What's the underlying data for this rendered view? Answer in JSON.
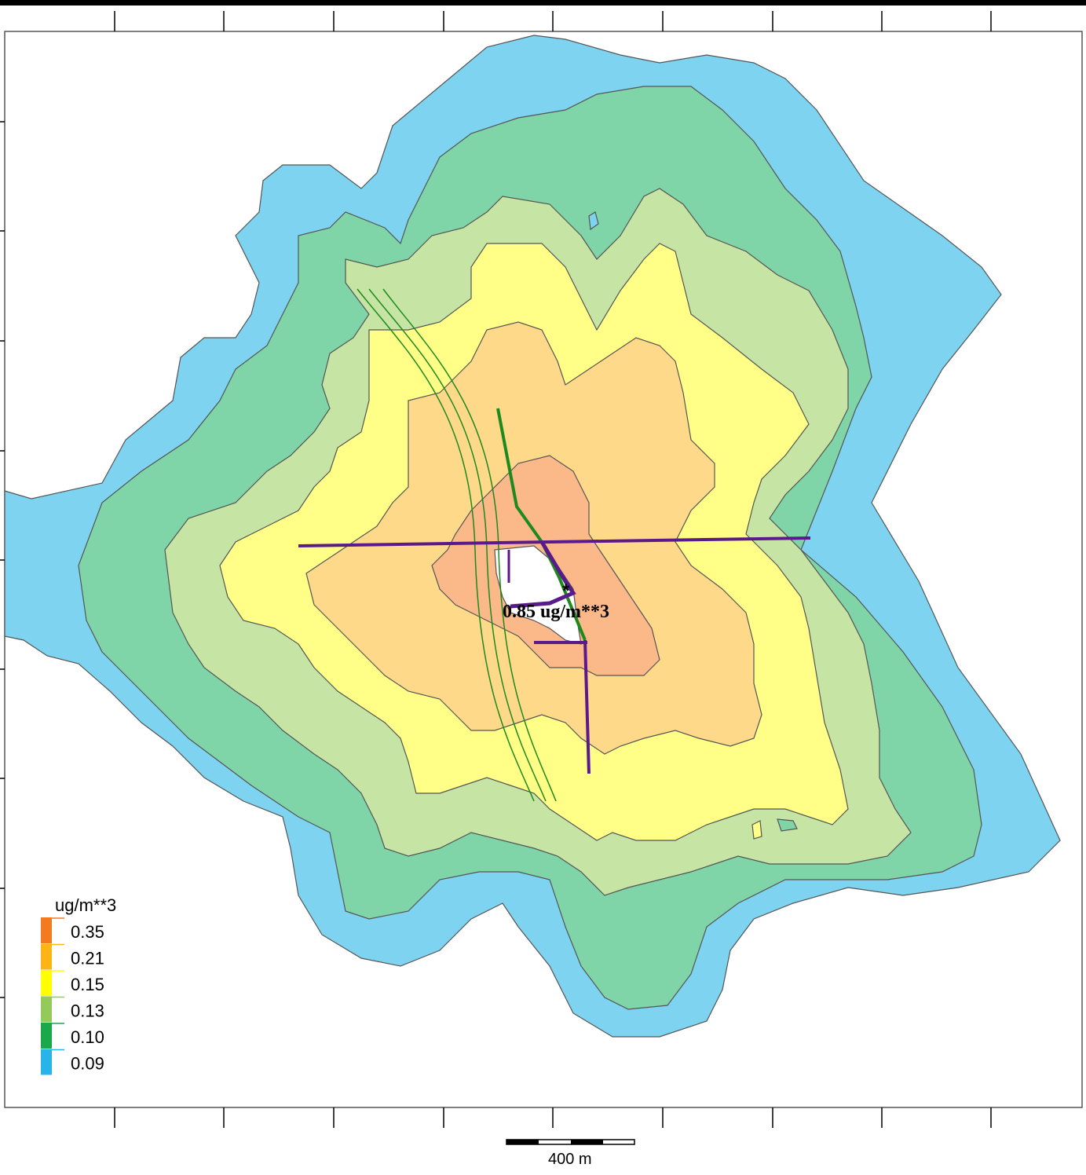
{
  "legend": {
    "unit": "ug/m**3",
    "items": [
      {
        "label": "0.35",
        "color": "#f47a20"
      },
      {
        "label": "0.21",
        "color": "#fdb515"
      },
      {
        "label": "0.15",
        "color": "#ffff00"
      },
      {
        "label": "0.13",
        "color": "#94ca5a"
      },
      {
        "label": "0.10",
        "color": "#1aa84a"
      },
      {
        "label": "0.09",
        "color": "#29b4e8"
      }
    ]
  },
  "contour_fills": {
    "band_009": "#7dd3f0",
    "band_010": "#7fd4a8",
    "band_013": "#c6e5a4",
    "band_015": "#ffff88",
    "band_021": "#ffd98a",
    "band_035": "#fbb98a"
  },
  "max_label": "0.85 ug/m**3",
  "scale_bar": {
    "label": "400 m"
  },
  "line_colors": {
    "road": "#5b1a8c",
    "track": "#1e8a1e"
  }
}
